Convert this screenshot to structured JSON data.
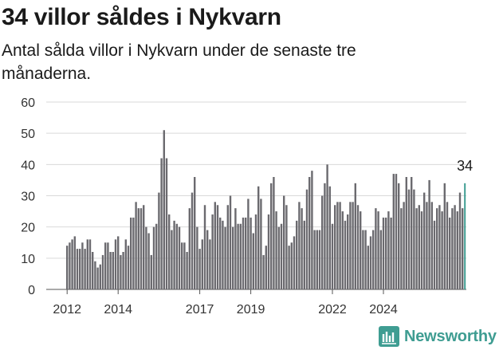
{
  "title": "34 villor såldes i Nykvarn",
  "subtitle": "Antal sålda villor i Nykvarn under de senaste tre månaderna.",
  "brand": {
    "name": "Newsworthy",
    "logo_icon": "newsworthy-logo-icon"
  },
  "colors": {
    "bar": "#6b6a6f",
    "highlight": "#3f9d92",
    "grid": "#d9d9d9",
    "text": "#333333"
  },
  "chart_data": {
    "type": "bar",
    "title": "34 villor såldes i Nykvarn",
    "subtitle": "Antal sålda villor i Nykvarn under de senaste tre månaderna.",
    "xlabel": "",
    "ylabel": "",
    "ylim": [
      0,
      60
    ],
    "yticks": [
      0,
      10,
      20,
      30,
      40,
      50,
      60
    ],
    "x_tick_labels": [
      "2012",
      "2014",
      "2017",
      "2019",
      "2022",
      "2024"
    ],
    "x_tick_positions": [
      0,
      20,
      52,
      72,
      104,
      124
    ],
    "grid": true,
    "legend": "none",
    "start": "2012-01",
    "interval": "month",
    "highlight_index": 156,
    "highlight_label": "34",
    "values": [
      14,
      15,
      16,
      17,
      13,
      13,
      15,
      13,
      16,
      16,
      12,
      9,
      7,
      8,
      11,
      15,
      15,
      12,
      12,
      16,
      17,
      11,
      12,
      16,
      14,
      23,
      23,
      28,
      26,
      26,
      27,
      20,
      18,
      11,
      20,
      21,
      31,
      42,
      51,
      42,
      24,
      19,
      22,
      21,
      20,
      15,
      15,
      12,
      26,
      31,
      36,
      20,
      13,
      16,
      27,
      19,
      16,
      24,
      28,
      27,
      23,
      22,
      20,
      27,
      30,
      20,
      26,
      21,
      21,
      23,
      23,
      29,
      23,
      18,
      24,
      33,
      29,
      11,
      14,
      24,
      34,
      36,
      25,
      20,
      21,
      30,
      27,
      14,
      15,
      17,
      22,
      28,
      26,
      22,
      32,
      36,
      38,
      19,
      19,
      19,
      30,
      34,
      40,
      33,
      21,
      27,
      28,
      28,
      25,
      22,
      24,
      28,
      28,
      34,
      27,
      25,
      19,
      19,
      14,
      17,
      19,
      26,
      25,
      19,
      23,
      23,
      25,
      23,
      37,
      37,
      34,
      26,
      28,
      36,
      32,
      36,
      32,
      26,
      27,
      25,
      31,
      28,
      35,
      28,
      22,
      26,
      27,
      25,
      34,
      28,
      23,
      26,
      27,
      25,
      31,
      26,
      34
    ]
  }
}
